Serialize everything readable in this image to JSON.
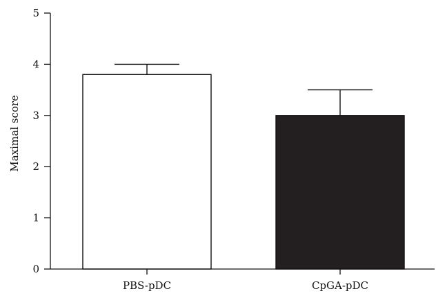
{
  "chart_data": {
    "type": "bar",
    "title": "",
    "xlabel": "",
    "ylabel": "Maximal score",
    "ylim": [
      0,
      5
    ],
    "yticks": [
      0,
      1,
      2,
      3,
      4,
      5
    ],
    "grid": false,
    "categories": [
      "PBS-pDC",
      "CpGA-pDC"
    ],
    "values": [
      3.8,
      3.0
    ],
    "error_upper": [
      4.0,
      3.5
    ],
    "colors": {
      "bars": [
        "#ffffff",
        "#231f20"
      ],
      "outline": "#111111",
      "axis": "#111111"
    }
  }
}
